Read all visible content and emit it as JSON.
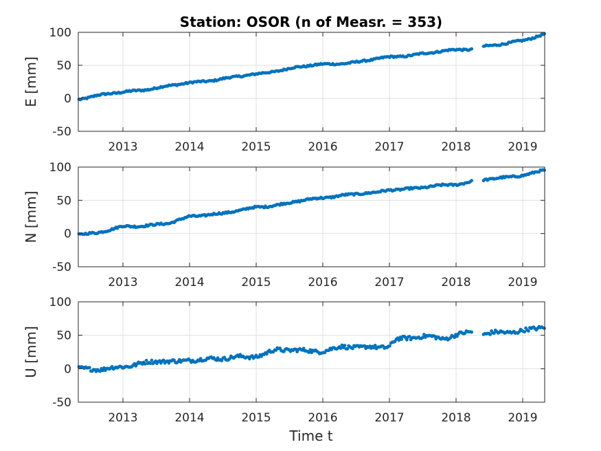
{
  "chart_data": {
    "type": "scatter",
    "title": "Station: OSOR (n of Measr. = 353)",
    "xlabel": "Time t",
    "x_tick_labels": [
      "2013",
      "2014",
      "2015",
      "2016",
      "2017",
      "2018",
      "2019"
    ],
    "x_ticks": [
      2013.0,
      2014.0,
      2015.0,
      2016.0,
      2017.0,
      2018.0,
      2019.0
    ],
    "xlim": [
      2012.33,
      2019.33
    ],
    "grid": true,
    "marker_color": "#0072bd",
    "gap": [
      2018.25,
      2018.4
    ],
    "panels": [
      {
        "ylabel": "E [mm]",
        "ylim": [
          -50,
          100
        ],
        "y_ticks": [
          -50,
          0,
          50,
          100
        ],
        "y_tick_labels": [
          "-50",
          "0",
          "50",
          "100"
        ],
        "trend": [
          [
            2012.33,
            -1
          ],
          [
            2012.6,
            4
          ],
          [
            2013.0,
            9
          ],
          [
            2013.5,
            16
          ],
          [
            2014.0,
            23
          ],
          [
            2014.5,
            30
          ],
          [
            2015.0,
            36
          ],
          [
            2015.3,
            42
          ],
          [
            2015.6,
            47
          ],
          [
            2016.0,
            51
          ],
          [
            2016.5,
            55
          ],
          [
            2017.0,
            62
          ],
          [
            2017.1,
            63
          ],
          [
            2017.5,
            68
          ],
          [
            2018.0,
            73
          ],
          [
            2018.25,
            75
          ],
          [
            2018.4,
            79
          ],
          [
            2018.8,
            83
          ],
          [
            2019.0,
            87
          ],
          [
            2019.33,
            98
          ]
        ],
        "noise": 1.2,
        "wiggle": 1.5
      },
      {
        "ylabel": "N [mm]",
        "ylim": [
          -50,
          100
        ],
        "y_ticks": [
          -50,
          0,
          50,
          100
        ],
        "y_tick_labels": [
          "-50",
          "0",
          "50",
          "100"
        ],
        "trend": [
          [
            2012.33,
            -1
          ],
          [
            2012.6,
            0
          ],
          [
            2012.8,
            5
          ],
          [
            2013.0,
            11
          ],
          [
            2013.3,
            12
          ],
          [
            2013.5,
            13
          ],
          [
            2013.7,
            15
          ],
          [
            2013.9,
            22
          ],
          [
            2014.0,
            26
          ],
          [
            2014.3,
            29
          ],
          [
            2014.5,
            30
          ],
          [
            2014.8,
            35
          ],
          [
            2015.0,
            40
          ],
          [
            2015.3,
            43
          ],
          [
            2015.5,
            46
          ],
          [
            2016.0,
            54
          ],
          [
            2016.3,
            58
          ],
          [
            2016.8,
            61
          ],
          [
            2017.0,
            66
          ],
          [
            2017.5,
            69
          ],
          [
            2018.0,
            74
          ],
          [
            2018.25,
            79
          ],
          [
            2018.4,
            81
          ],
          [
            2018.8,
            84
          ],
          [
            2019.0,
            88
          ],
          [
            2019.33,
            96
          ]
        ],
        "noise": 1.3,
        "wiggle": 1.5
      },
      {
        "ylabel": "U [mm]",
        "ylim": [
          -50,
          100
        ],
        "y_ticks": [
          -50,
          0,
          50,
          100
        ],
        "y_tick_labels": [
          "-50",
          "0",
          "50",
          "100"
        ],
        "trend": [
          [
            2012.33,
            -1
          ],
          [
            2012.7,
            -2
          ],
          [
            2013.0,
            5
          ],
          [
            2013.5,
            10
          ],
          [
            2013.8,
            10
          ],
          [
            2014.0,
            15
          ],
          [
            2014.5,
            14
          ],
          [
            2015.0,
            20
          ],
          [
            2015.3,
            28
          ],
          [
            2015.7,
            26
          ],
          [
            2016.0,
            28
          ],
          [
            2016.3,
            33
          ],
          [
            2016.6,
            30
          ],
          [
            2017.0,
            35
          ],
          [
            2017.1,
            45
          ],
          [
            2017.5,
            47
          ],
          [
            2017.8,
            45
          ],
          [
            2018.0,
            52
          ],
          [
            2018.25,
            56
          ],
          [
            2018.4,
            50
          ],
          [
            2018.8,
            55
          ],
          [
            2019.0,
            58
          ],
          [
            2019.33,
            63
          ]
        ],
        "noise": 2.8,
        "wiggle": 3.0
      }
    ]
  }
}
